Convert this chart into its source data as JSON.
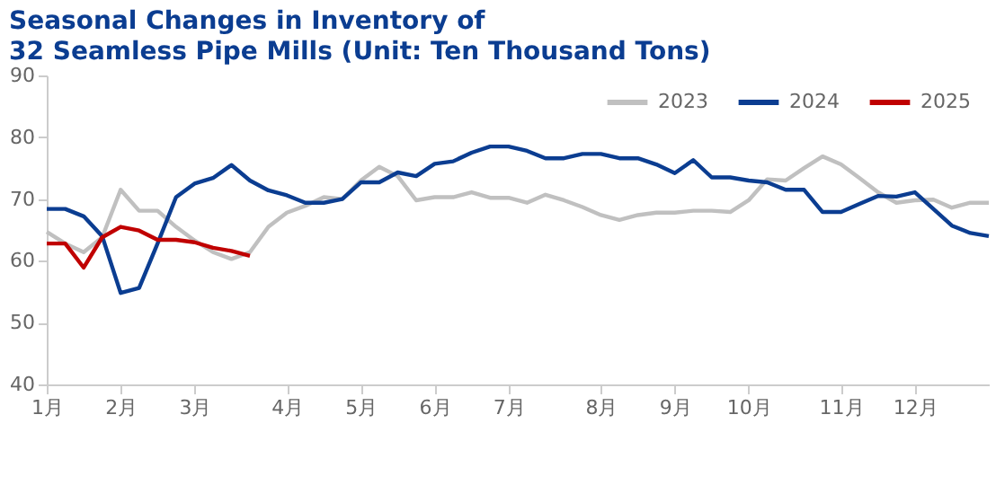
{
  "chart_data": {
    "type": "line",
    "title": [
      "Seasonal Changes in Inventory of",
      "32 Seamless Pipe Mills (Unit: Ten Thousand Tons)"
    ],
    "categories": [
      "1月",
      null,
      null,
      null,
      "2月",
      null,
      null,
      null,
      "3月",
      null,
      null,
      null,
      null,
      "4月",
      null,
      null,
      null,
      "5月",
      null,
      null,
      null,
      "6月",
      null,
      null,
      null,
      "7月",
      null,
      null,
      null,
      null,
      "8月",
      null,
      null,
      null,
      "9月",
      null,
      null,
      null,
      "10月",
      null,
      null,
      null,
      null,
      "11月",
      null,
      null,
      null,
      "12月",
      null,
      null,
      null,
      null
    ],
    "ylim": [
      40,
      90
    ],
    "yticks": [
      40,
      50,
      60,
      70,
      80,
      90
    ],
    "grid": false,
    "legend": "top right",
    "marker": "none",
    "line_style": "solid",
    "series": [
      {
        "name": "2023",
        "color": "#c0c0c0",
        "values": [
          64.7,
          62.8,
          61.4,
          63.8,
          71.5,
          68.1,
          68.1,
          65.5,
          63.3,
          61.4,
          60.3,
          61.4,
          65.5,
          67.8,
          68.9,
          70.3,
          70.0,
          73.0,
          75.2,
          73.7,
          69.8,
          70.3,
          70.3,
          71.1,
          70.2,
          70.2,
          69.4,
          70.7,
          69.8,
          68.7,
          67.4,
          66.6,
          67.4,
          67.8,
          67.8,
          68.1,
          68.1,
          67.9,
          69.8,
          73.2,
          73.0,
          75.0,
          76.9,
          75.6,
          73.4,
          71.1,
          69.4,
          69.8,
          69.9,
          68.6,
          69.4,
          69.4
        ]
      },
      {
        "name": "2024",
        "color": "#0b3d91",
        "values": [
          68.4,
          68.4,
          67.2,
          64.0,
          54.8,
          55.6,
          62.8,
          70.3,
          72.5,
          73.4,
          75.5,
          73.0,
          71.4,
          70.6,
          69.4,
          69.4,
          70.0,
          72.7,
          72.7,
          74.3,
          73.7,
          75.7,
          76.1,
          77.5,
          78.5,
          78.5,
          77.8,
          76.6,
          76.6,
          77.3,
          77.3,
          76.6,
          76.6,
          75.6,
          74.2,
          76.3,
          73.5,
          73.5,
          73.0,
          72.7,
          71.5,
          71.5,
          67.9,
          67.9,
          69.2,
          70.5,
          70.4,
          71.1,
          68.4,
          65.7,
          64.5,
          64.0
        ]
      },
      {
        "name": "2025",
        "color": "#c00000",
        "values": [
          62.8,
          62.8,
          58.9,
          63.8,
          65.5,
          64.9,
          63.4,
          63.4,
          63.0,
          62.1,
          61.6,
          60.8,
          null,
          null,
          null,
          null,
          null,
          null,
          null,
          null,
          null,
          null,
          null,
          null,
          null,
          null,
          null,
          null,
          null,
          null,
          null,
          null,
          null,
          null,
          null,
          null,
          null,
          null,
          null,
          null,
          null,
          null,
          null,
          null,
          null,
          null,
          null,
          null,
          null,
          null,
          null,
          null
        ]
      }
    ]
  }
}
